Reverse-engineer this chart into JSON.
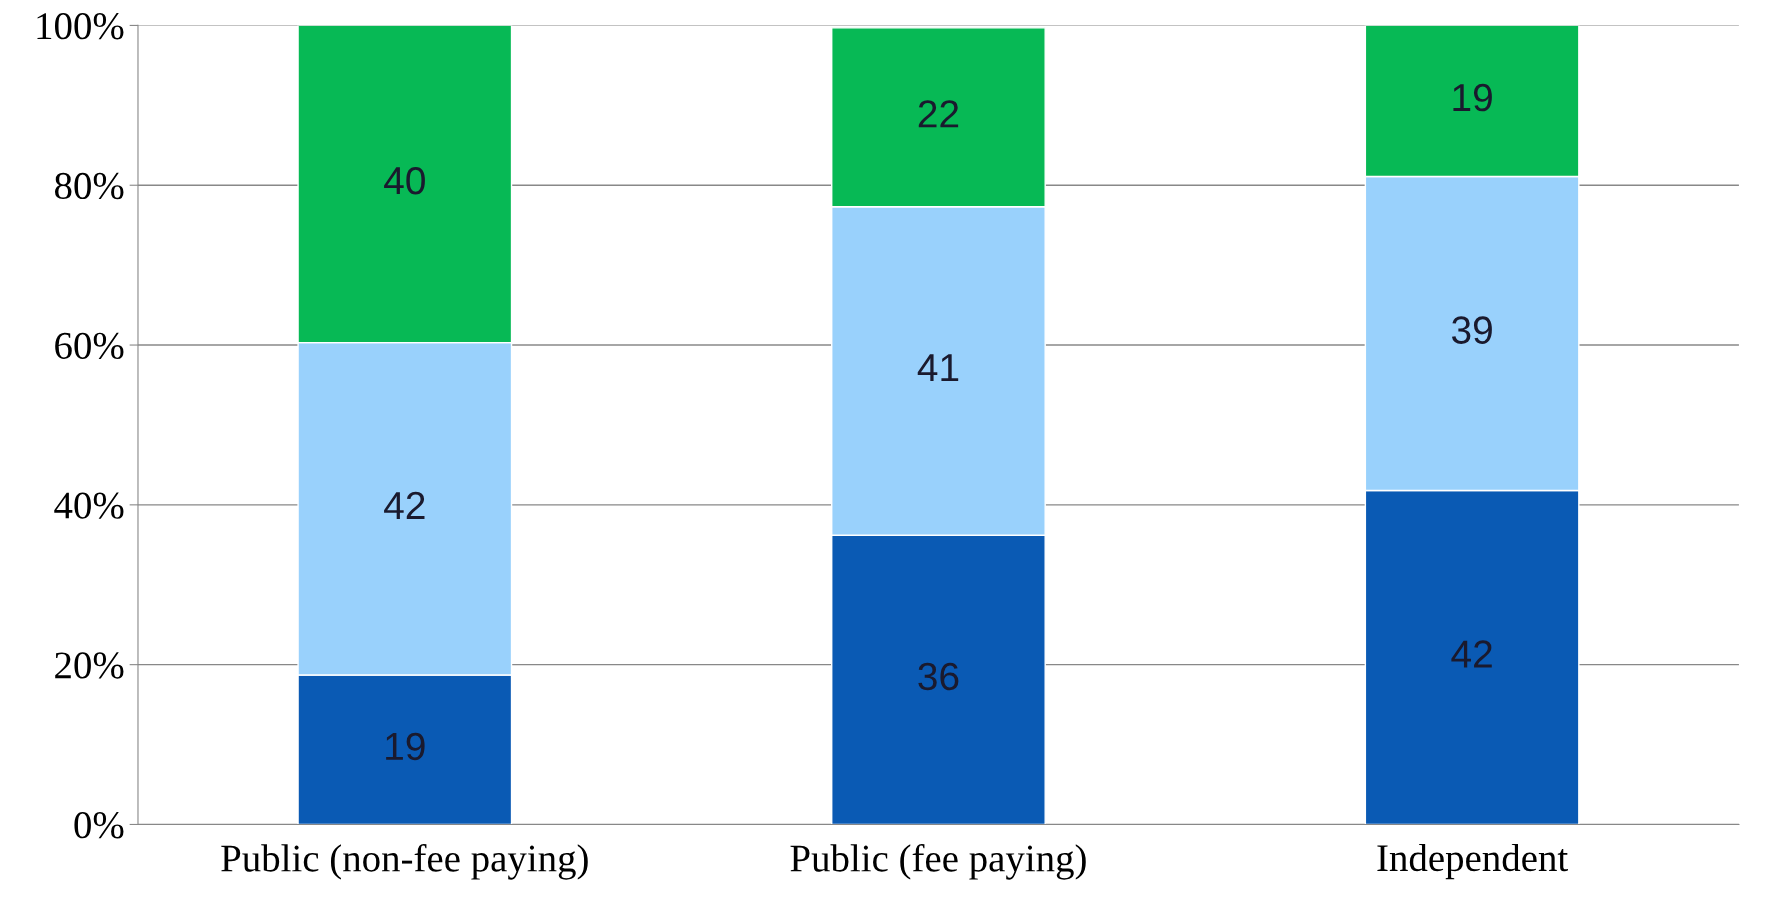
{
  "chart_data": {
    "type": "bar",
    "stacked": true,
    "categories": [
      "Public (non-fee paying)",
      "Public (fee paying)",
      "Independent"
    ],
    "series": [
      {
        "color": "#0a5ab4",
        "values": [
          18.7,
          36.2,
          41.8
        ],
        "value_labels": [
          "19",
          "36",
          "42"
        ]
      },
      {
        "color": "#99d1fc",
        "values": [
          41.6,
          41.1,
          39.3
        ],
        "value_labels": [
          "42",
          "41",
          "39"
        ]
      },
      {
        "color": "#07b955",
        "values": [
          39.7,
          22.4,
          18.9
        ],
        "value_labels": [
          "40",
          "22",
          "19"
        ]
      }
    ],
    "ylim": [
      0,
      100
    ],
    "yticks": [
      {
        "value": 0,
        "label": "0%"
      },
      {
        "value": 20,
        "label": "20%"
      },
      {
        "value": 40,
        "label": "40%"
      },
      {
        "value": 60,
        "label": "60%"
      },
      {
        "value": 80,
        "label": "80%"
      },
      {
        "value": 100,
        "label": "100%"
      }
    ],
    "grid": "y",
    "legend": false
  }
}
